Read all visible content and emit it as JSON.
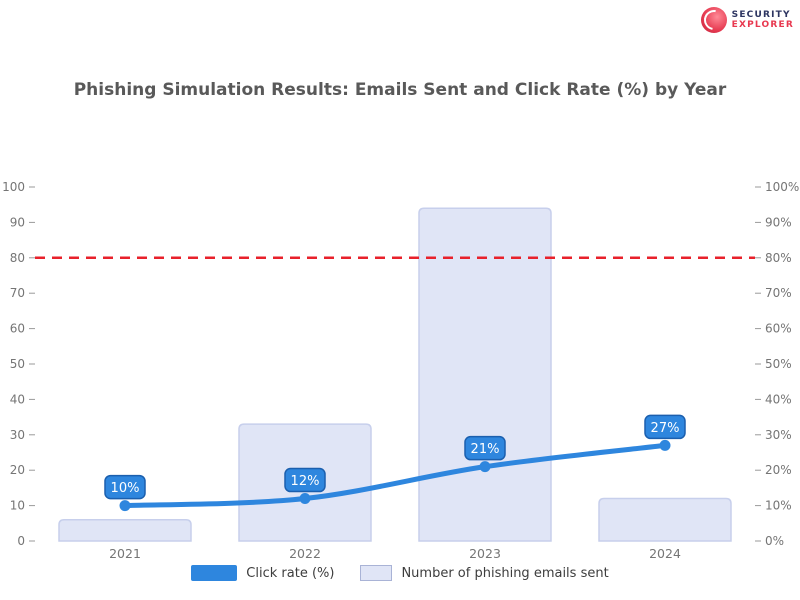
{
  "header": {
    "title": "Phishing Simulation Results: Emails Sent and Click Rate (%) by Year"
  },
  "logo": {
    "line1": "SECURITY",
    "line2": "EXPLORER"
  },
  "legend": [
    {
      "label": "Click rate (%)",
      "swatch_color": "#2e86de",
      "type": "line"
    },
    {
      "label": "Number of phishing emails sent",
      "swatch_color": "#e0e5f6",
      "swatch_border": "#a9b3d6",
      "type": "bar"
    }
  ],
  "colors": {
    "background": "#ffffff",
    "line": "#2e86de",
    "line_label_bg": "#2e86de",
    "line_label_border": "#1b5fae",
    "line_label_text": "#ffffff",
    "bar_fill": "#e0e5f6",
    "bar_border": "#c7cfec",
    "reference": "#e8212b",
    "title_text": "#595959",
    "axis_text": "#757575",
    "legend_text": "#3d3d3d"
  },
  "chart_data": {
    "type": "combo_bar_line",
    "title": "Phishing Simulation Results: Emails Sent and Click Rate (%) by Year",
    "categories": [
      "2021",
      "2022",
      "2023",
      "2024"
    ],
    "series": [
      {
        "name": "Number of phishing emails sent",
        "type": "bar",
        "axis": "left",
        "values": [
          6,
          33,
          94,
          12
        ]
      },
      {
        "name": "Click rate (%)",
        "type": "line",
        "axis": "right",
        "values": [
          10,
          12,
          21,
          27
        ],
        "point_labels": [
          "10%",
          "12%",
          "21%",
          "27%"
        ]
      }
    ],
    "reference_line": {
      "value": 80,
      "style": "dashed",
      "color": "#e8212b"
    },
    "left_axis": {
      "min": 0,
      "max": 100,
      "step": 10,
      "tick_labels": [
        "100",
        "90",
        "80",
        "70",
        "60",
        "50",
        "40",
        "30",
        "20",
        "10",
        "0"
      ]
    },
    "right_axis": {
      "min": 0,
      "max": 100,
      "step": 10,
      "tick_labels": [
        "100%",
        "90%",
        "80%",
        "70%",
        "60%",
        "50%",
        "40%",
        "30%",
        "20%",
        "10%",
        "0%"
      ]
    },
    "grid": false,
    "legend_position": "bottom"
  }
}
